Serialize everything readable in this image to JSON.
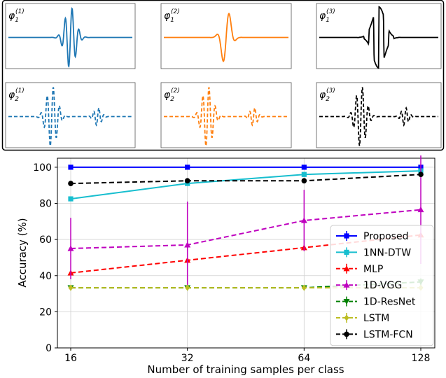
{
  "waveforms": {
    "panels": [
      {
        "label_base": "φ",
        "label_sub": "1",
        "label_sup": "(1)",
        "color": "#1f77b4",
        "style": "solid",
        "shape": "packet-dense"
      },
      {
        "label_base": "φ",
        "label_sub": "1",
        "label_sup": "(2)",
        "color": "#ff7f0e",
        "style": "solid",
        "shape": "packet-sparse"
      },
      {
        "label_base": "φ",
        "label_sub": "1",
        "label_sup": "(3)",
        "color": "#000000",
        "style": "solid",
        "shape": "packet-square"
      },
      {
        "label_base": "φ",
        "label_sub": "2",
        "label_sup": "(1)",
        "color": "#1f77b4",
        "style": "dashed",
        "shape": "double-packet"
      },
      {
        "label_base": "φ",
        "label_sub": "2",
        "label_sup": "(2)",
        "color": "#ff7f0e",
        "style": "dashed",
        "shape": "double-packet"
      },
      {
        "label_base": "φ",
        "label_sub": "2",
        "label_sup": "(3)",
        "color": "#000000",
        "style": "dashed",
        "shape": "double-packet"
      }
    ]
  },
  "chart_data": {
    "type": "line",
    "xlabel": "Number of training samples per class",
    "ylabel": "Accuracy (%)",
    "x_scale": "log2",
    "categories": [
      "16",
      "32",
      "64",
      "128"
    ],
    "x": [
      16,
      32,
      64,
      128
    ],
    "ylim": [
      0,
      105
    ],
    "yticks": [
      0,
      20,
      40,
      60,
      80,
      100
    ],
    "grid": true,
    "legend_position": "lower-right",
    "series": [
      {
        "name": "Proposed",
        "color": "#0000ff",
        "linestyle": "solid",
        "marker": "square",
        "values": [
          100,
          100,
          100,
          100
        ],
        "err": [
          0,
          0,
          0,
          0
        ]
      },
      {
        "name": "1NN-DTW",
        "color": "#17becf",
        "linestyle": "solid",
        "marker": "square",
        "values": [
          82.5,
          91,
          96,
          98
        ],
        "err": [
          0,
          0,
          0,
          0
        ]
      },
      {
        "name": "MLP",
        "color": "#ff0000",
        "linestyle": "dashed",
        "marker": "triangle-up",
        "values": [
          41.5,
          48.5,
          55.5,
          62.5
        ],
        "err": [
          0,
          0,
          0,
          0
        ]
      },
      {
        "name": "1D-VGG",
        "color": "#bf00bf",
        "linestyle": "dashed",
        "marker": "triangle-up",
        "values": [
          55,
          57,
          70.5,
          76.5
        ],
        "err": [
          17,
          24,
          17,
          30
        ]
      },
      {
        "name": "1D-ResNet",
        "color": "#008000",
        "linestyle": "dashed",
        "marker": "triangle-down",
        "values": [
          33.3,
          33.3,
          33.3,
          36.5
        ],
        "err": [
          0,
          0,
          0,
          2
        ]
      },
      {
        "name": "LSTM",
        "color": "#bcbd22",
        "linestyle": "dashed",
        "marker": "diamond",
        "values": [
          33.3,
          33.3,
          33.3,
          33.3
        ],
        "err": [
          0,
          0,
          0,
          0
        ]
      },
      {
        "name": "LSTM-FCN",
        "color": "#000000",
        "linestyle": "dashed",
        "marker": "circle",
        "values": [
          91,
          92.5,
          92.5,
          96
        ],
        "err": [
          0,
          0,
          0,
          0
        ]
      }
    ]
  }
}
